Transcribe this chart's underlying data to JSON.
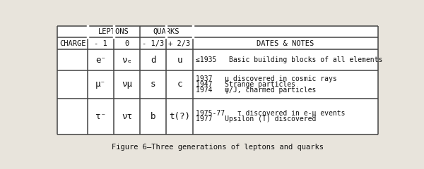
{
  "title": "Figure 6—Three generations of leptons and quarks",
  "bg_color": "#e8e4dc",
  "table_bg": "#ffffff",
  "line_color": "#444444",
  "text_color": "#111111",
  "header_top": [
    "LEPTONS",
    "QUARKS"
  ],
  "header_row": [
    "CHARGE",
    "- 1",
    "0",
    "- 1/3",
    "+ 2/3",
    "DATES & NOTES"
  ],
  "rows": [
    {
      "col1": "e⁻",
      "col2": "νₑ",
      "col3": "d",
      "col4": "u",
      "notes_lines": [
        "≤1935   Basic building blocks of all elements"
      ]
    },
    {
      "col1": "μ⁻",
      "col2": "νμ",
      "col3": "s",
      "col4": "c",
      "notes_lines": [
        "1937   μ discovered in cosmic rays",
        "1947   Strange particles",
        "1974   ψ/J, charmed particles"
      ]
    },
    {
      "col1": "τ⁻",
      "col2": "ντ",
      "col3": "b",
      "col4": "t(?)",
      "notes_lines": [
        "1975-77   τ discovered in e-μ events",
        "1977   Upsilon (T) discovered"
      ]
    }
  ]
}
